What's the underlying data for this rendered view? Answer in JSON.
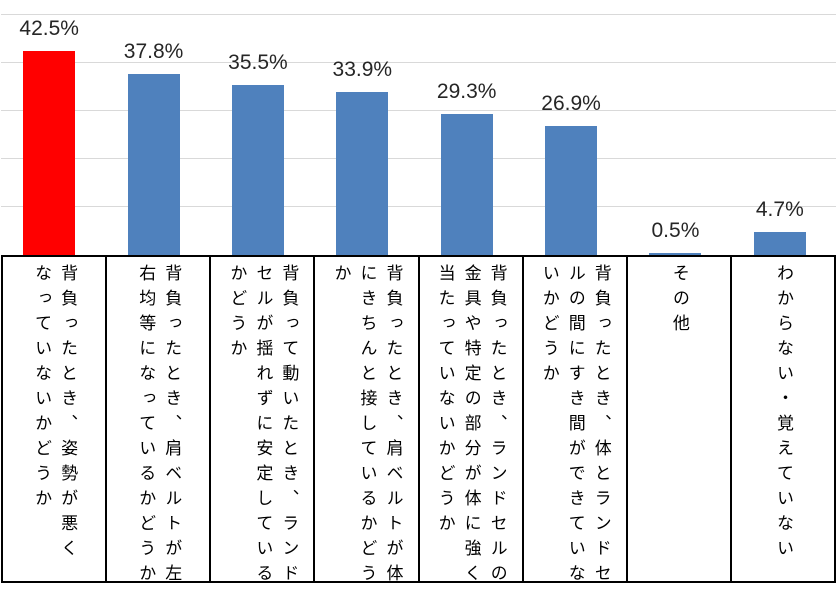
{
  "chart_data": {
    "type": "bar",
    "title": "",
    "xlabel": "",
    "ylabel": "",
    "ylim": [
      0,
      50
    ],
    "gridline_interval": 10,
    "grid": true,
    "legend": false,
    "categories": [
      "背負ったとき、姿勢が悪くなっていないかどうか",
      "背負ったとき、肩ベルトが左右均等になっているかどうか",
      "背負って動いたとき、ランドセルが揺れずに安定しているかどうか",
      "背負ったとき、肩ベルトが体にきちんと接しているかどうか",
      "背負ったとき、ランドセルの金具や特定の部分が体に強く当たっていないかどうか",
      "背負ったとき、体とランドセルの間にすき間ができていないかどうか",
      "その他",
      "わからない・覚えていない"
    ],
    "category_lines": [
      [
        "背負ったとき、姿勢が悪く",
        "なっていないかどうか"
      ],
      [
        "背負ったとき、肩ベルトが左",
        "右均等になっているかどうか"
      ],
      [
        "背負って動いたとき、ランド",
        "セルが揺れずに安定している",
        "かどうか"
      ],
      [
        "背負ったとき、肩ベルトが体",
        "にきちんと接しているかどう",
        "か"
      ],
      [
        "背負ったとき、ランドセルの",
        "金具や特定の部分が体に強く",
        "当たっていないかどうか"
      ],
      [
        "背負ったとき、体とランドセ",
        "ルの間にすき間ができていな",
        "いかどうか"
      ],
      [
        "その他"
      ],
      [
        "わからない・覚えていない"
      ]
    ],
    "values": [
      42.5,
      37.8,
      35.5,
      33.9,
      29.3,
      26.9,
      0.5,
      4.7
    ],
    "value_labels": [
      "42.5%",
      "37.8%",
      "35.5%",
      "33.9%",
      "29.3%",
      "26.9%",
      "0.5%",
      "4.7%"
    ],
    "bar_colors": [
      "#FF0000",
      "#4F81BD",
      "#4F81BD",
      "#4F81BD",
      "#4F81BD",
      "#4F81BD",
      "#4F81BD",
      "#4F81BD"
    ]
  },
  "style": {
    "background": "#FFFFFF",
    "gridline_color": "#D9D9D9",
    "axis_line_color": "#000000",
    "table_border_color": "#000000",
    "value_label_color": "#262626",
    "category_text_color": "#000000",
    "default_bar_color": "#4F81BD",
    "highlight_bar_color": "#FF0000"
  }
}
